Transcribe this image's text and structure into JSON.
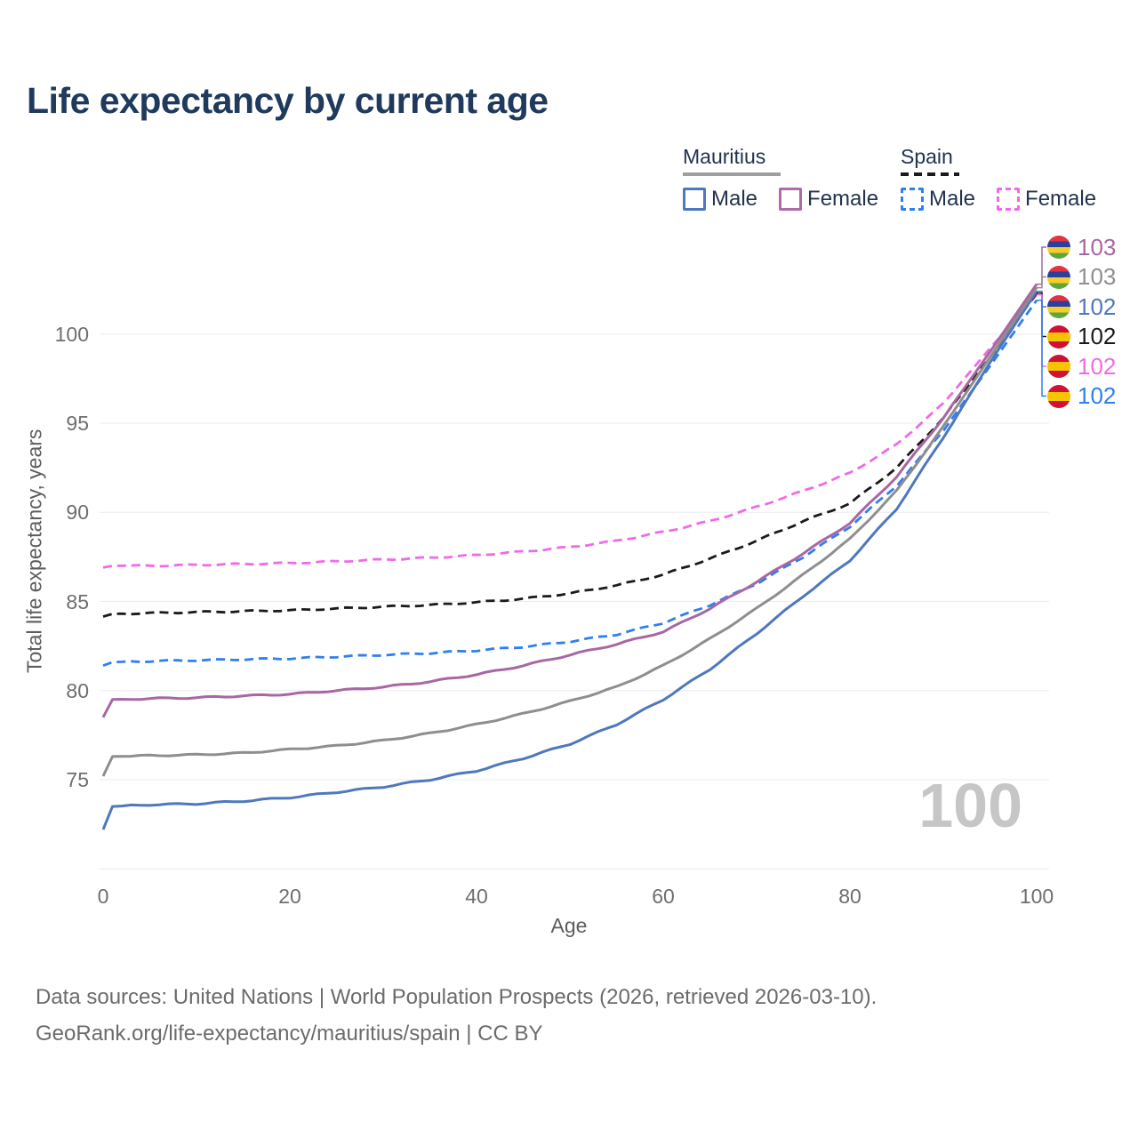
{
  "title": "Life expectancy by current age",
  "watermark": "100",
  "legend": {
    "groups": [
      {
        "label": "Mauritius",
        "line_style": "solid",
        "underline_color": "#9e9e9e"
      },
      {
        "label": "Spain",
        "line_style": "dashed",
        "underline_color": "#1a1a1a"
      }
    ],
    "items": [
      {
        "country": "Mauritius",
        "label": "Male",
        "color": "#4e78bd",
        "dashed": false
      },
      {
        "country": "Mauritius",
        "label": "Female",
        "color": "#ad6ca8",
        "dashed": false
      },
      {
        "country": "Spain",
        "label": "Male",
        "color": "#2f7ff0",
        "dashed": true
      },
      {
        "country": "Spain",
        "label": "Female",
        "color": "#f06ae8",
        "dashed": true
      }
    ]
  },
  "chart_data": {
    "type": "line",
    "title": "Life expectancy by current age",
    "xlabel": "Age",
    "ylabel": "Total life expectancy, years",
    "xlim": [
      0,
      100
    ],
    "ylim": [
      70,
      104
    ],
    "xticks": [
      0,
      20,
      40,
      60,
      80,
      100
    ],
    "yticks": [
      75,
      80,
      85,
      90,
      95,
      100
    ],
    "gridline_values": [
      70,
      75,
      80,
      85,
      90,
      95,
      100
    ],
    "grid": "horizontal",
    "legend_position": "top-right",
    "hovered_age": "100",
    "x": [
      0,
      1,
      5,
      10,
      15,
      20,
      25,
      30,
      35,
      40,
      45,
      50,
      55,
      60,
      65,
      70,
      75,
      80,
      85,
      90,
      95,
      100
    ],
    "series": [
      {
        "name": "Mauritius Female",
        "country": "Mauritius",
        "sex": "Female",
        "color": "#a867a3",
        "dash": "solid",
        "flag": "mauritius",
        "end_label": "103",
        "values": [
          78.5,
          79.5,
          79.55,
          79.6,
          79.7,
          79.8,
          80.0,
          80.2,
          80.5,
          80.9,
          81.4,
          82.0,
          82.6,
          83.3,
          84.6,
          86.1,
          87.7,
          89.4,
          92.0,
          95.3,
          99.0,
          102.8
        ]
      },
      {
        "name": "Mauritius Total",
        "country": "Mauritius",
        "sex": "Both",
        "color": "#8e8e8e",
        "dash": "solid",
        "flag": "mauritius",
        "end_label": "103",
        "values": [
          75.2,
          76.3,
          76.35,
          76.4,
          76.5,
          76.7,
          76.9,
          77.2,
          77.6,
          78.1,
          78.7,
          79.4,
          80.2,
          81.4,
          82.9,
          84.6,
          86.5,
          88.5,
          91.2,
          94.8,
          98.7,
          102.6
        ]
      },
      {
        "name": "Mauritius Male",
        "country": "Mauritius",
        "sex": "Male",
        "color": "#4e78bd",
        "dash": "solid",
        "flag": "mauritius",
        "end_label": "102",
        "values": [
          72.2,
          73.5,
          73.6,
          73.65,
          73.8,
          74.0,
          74.3,
          74.6,
          75.0,
          75.5,
          76.2,
          77.0,
          78.1,
          79.5,
          81.2,
          83.2,
          85.3,
          87.3,
          90.2,
          94.2,
          98.4,
          102.4
        ]
      },
      {
        "name": "Spain Total",
        "country": "Spain",
        "sex": "Both",
        "color": "#1a1a1a",
        "dash": "dashed",
        "flag": "spain",
        "end_label": "102",
        "values": [
          84.15,
          84.3,
          84.35,
          84.4,
          84.45,
          84.5,
          84.6,
          84.7,
          84.8,
          84.95,
          85.15,
          85.45,
          85.9,
          86.5,
          87.4,
          88.4,
          89.5,
          90.5,
          92.5,
          95.3,
          98.7,
          102.3
        ]
      },
      {
        "name": "Spain Female",
        "country": "Spain",
        "sex": "Female",
        "color": "#f06ae8",
        "dash": "dashed",
        "flag": "spain",
        "end_label": "102",
        "values": [
          86.9,
          87.0,
          87.0,
          87.05,
          87.1,
          87.15,
          87.25,
          87.35,
          87.45,
          87.6,
          87.8,
          88.05,
          88.4,
          88.9,
          89.5,
          90.3,
          91.2,
          92.2,
          93.8,
          96.1,
          99.2,
          102.2
        ]
      },
      {
        "name": "Spain Male",
        "country": "Spain",
        "sex": "Male",
        "color": "#2f7ff0",
        "dash": "dashed",
        "flag": "spain",
        "end_label": "102",
        "values": [
          81.4,
          81.6,
          81.65,
          81.7,
          81.75,
          81.8,
          81.9,
          82.0,
          82.1,
          82.25,
          82.45,
          82.75,
          83.15,
          83.8,
          84.8,
          86.0,
          87.5,
          89.2,
          91.5,
          94.6,
          98.2,
          101.9
        ]
      }
    ]
  },
  "footer": {
    "line1": "Data sources: United Nations | World Population Prospects (2026, retrieved 2026-03-10).",
    "line2": "GeoRank.org/life-expectancy/mauritius/spain | CC BY"
  }
}
